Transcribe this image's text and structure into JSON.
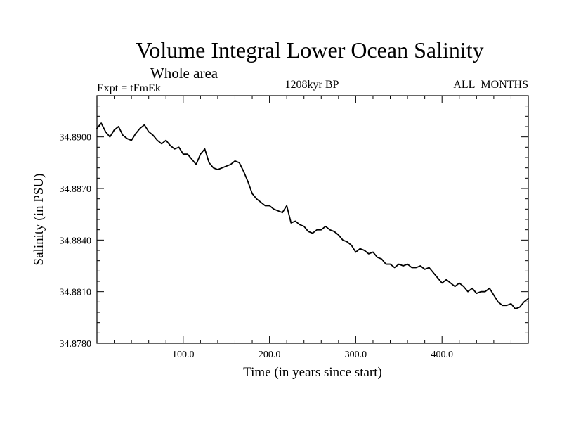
{
  "chart_data": {
    "type": "line",
    "title": "Volume Integral Lower Ocean Salinity",
    "subtitle": "Whole area",
    "experiment": "Expt = tFmEk",
    "period": "1208kyr BP",
    "months": "ALL_MONTHS",
    "xlabel": "Time (in years since start)",
    "ylabel": "Salinity (in PSU)",
    "xlim": [
      0,
      500
    ],
    "ylim": [
      34.878,
      34.8924
    ],
    "xticks": [
      100,
      200,
      300,
      400
    ],
    "xtick_labels": [
      "100.0",
      "200.0",
      "300.0",
      "400.0"
    ],
    "yticks": [
      34.878,
      34.881,
      34.884,
      34.887,
      34.89
    ],
    "ytick_labels": [
      "34.8780",
      "34.8810",
      "34.8840",
      "34.8870",
      "34.8900"
    ],
    "series": [
      {
        "name": "Salinity",
        "x": [
          0,
          5,
          10,
          15,
          20,
          25,
          30,
          35,
          40,
          45,
          50,
          55,
          60,
          65,
          70,
          75,
          80,
          85,
          90,
          95,
          100,
          105,
          110,
          115,
          120,
          125,
          130,
          135,
          140,
          145,
          150,
          155,
          160,
          165,
          170,
          175,
          180,
          185,
          190,
          195,
          200,
          205,
          210,
          215,
          220,
          225,
          230,
          235,
          240,
          245,
          250,
          255,
          260,
          265,
          270,
          275,
          280,
          285,
          290,
          295,
          300,
          305,
          310,
          315,
          320,
          325,
          330,
          335,
          340,
          345,
          350,
          355,
          360,
          365,
          370,
          375,
          380,
          385,
          390,
          395,
          400,
          405,
          410,
          415,
          420,
          425,
          430,
          435,
          440,
          445,
          450,
          455,
          460,
          465,
          470,
          475,
          480,
          485,
          490,
          495,
          500
        ],
        "values": [
          34.8905,
          34.8908,
          34.8903,
          34.89,
          34.8904,
          34.8906,
          34.8901,
          34.8899,
          34.8898,
          34.8902,
          34.8905,
          34.8907,
          34.8903,
          34.8901,
          34.8898,
          34.8896,
          34.8898,
          34.8895,
          34.8893,
          34.8894,
          34.889,
          34.889,
          34.8887,
          34.8884,
          34.889,
          34.8893,
          34.8885,
          34.8882,
          34.8881,
          34.8882,
          34.8883,
          34.8884,
          34.8886,
          34.8885,
          34.888,
          34.8874,
          34.8867,
          34.8864,
          34.8862,
          34.886,
          34.886,
          34.8858,
          34.8857,
          34.8856,
          34.886,
          34.885,
          34.8851,
          34.8849,
          34.8848,
          34.8845,
          34.8844,
          34.8846,
          34.8846,
          34.8848,
          34.8846,
          34.8845,
          34.8843,
          34.884,
          34.8839,
          34.8837,
          34.8833,
          34.8835,
          34.8834,
          34.8832,
          34.8833,
          34.883,
          34.8829,
          34.8826,
          34.8826,
          34.8824,
          34.8826,
          34.8825,
          34.8826,
          34.8824,
          34.8824,
          34.8825,
          34.8823,
          34.8824,
          34.8821,
          34.8818,
          34.8815,
          34.8817,
          34.8815,
          34.8813,
          34.8815,
          34.8813,
          34.881,
          34.8812,
          34.8809,
          34.881,
          34.881,
          34.8812,
          34.8808,
          34.8804,
          34.8802,
          34.8802,
          34.8803,
          34.88,
          34.8801,
          34.8804,
          34.8806
        ]
      }
    ]
  }
}
